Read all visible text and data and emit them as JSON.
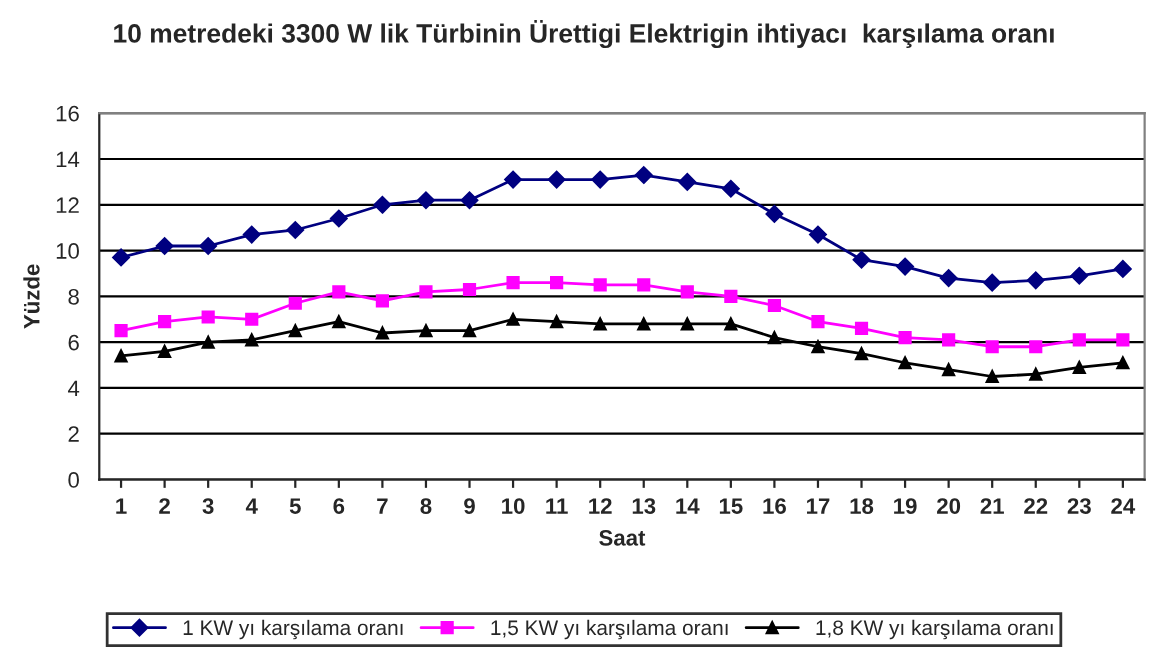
{
  "chart_data": {
    "type": "line",
    "title": "10 metredeki 3300 W lik Türbinin Ürettigi Elektrigin ihtiyacı  karşılama oranı",
    "xlabel": "Saat",
    "ylabel": "Yüzde",
    "categories": [
      "1",
      "2",
      "3",
      "4",
      "5",
      "6",
      "7",
      "8",
      "9",
      "10",
      "11",
      "12",
      "13",
      "14",
      "15",
      "16",
      "17",
      "18",
      "19",
      "20",
      "21",
      "22",
      "23",
      "24"
    ],
    "series": [
      {
        "name": "1 KW yı karşılama oranı",
        "color": "#000080",
        "marker": "diamond",
        "values": [
          9.7,
          10.2,
          10.2,
          10.7,
          10.9,
          11.4,
          12.0,
          12.2,
          12.2,
          13.1,
          13.1,
          13.1,
          13.3,
          13.0,
          12.7,
          11.6,
          10.7,
          9.6,
          9.3,
          8.8,
          8.6,
          8.7,
          8.9,
          9.2
        ]
      },
      {
        "name": "1,5 KW yı karşılama oranı",
        "color": "#ff00ff",
        "marker": "square",
        "values": [
          6.5,
          6.9,
          7.1,
          7.0,
          7.7,
          8.2,
          7.8,
          8.2,
          8.3,
          8.6,
          8.6,
          8.5,
          8.5,
          8.2,
          8.0,
          7.6,
          6.9,
          6.6,
          6.2,
          6.1,
          5.8,
          5.8,
          6.1,
          6.1
        ]
      },
      {
        "name": "1,8 KW yı karşılama oranı",
        "color": "#000000",
        "marker": "triangle",
        "values": [
          5.4,
          5.6,
          6.0,
          6.1,
          6.5,
          6.9,
          6.4,
          6.5,
          6.5,
          7.0,
          6.9,
          6.8,
          6.8,
          6.8,
          6.8,
          6.2,
          5.8,
          5.5,
          5.1,
          4.8,
          4.5,
          4.6,
          4.9,
          5.1
        ]
      }
    ],
    "ylim": [
      0,
      16
    ],
    "yticks": [
      0,
      2,
      4,
      6,
      8,
      10,
      12,
      14,
      16
    ],
    "grid": "y",
    "legend": "bottom"
  }
}
